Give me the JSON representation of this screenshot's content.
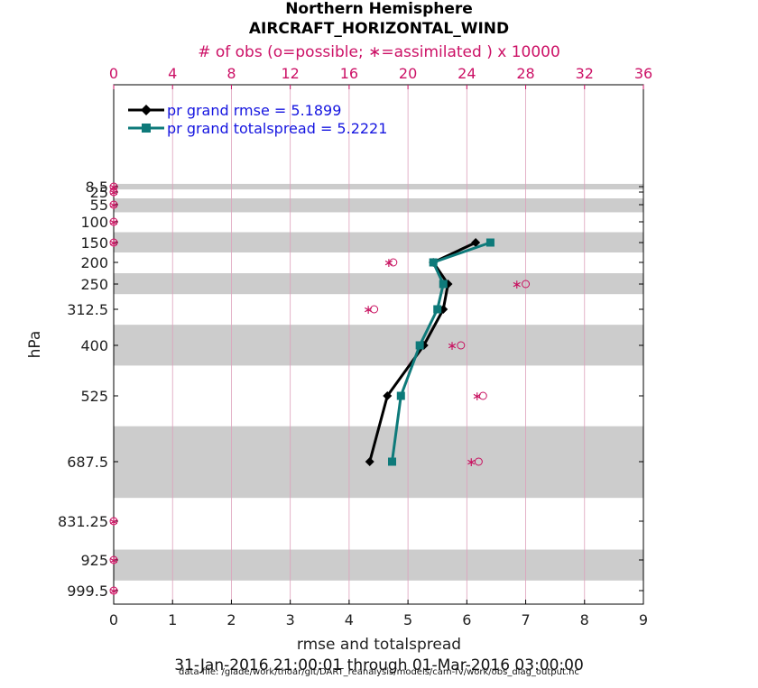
{
  "header": {
    "line1": "Northern Hemisphere",
    "line2": "AIRCRAFT_HORIZONTAL_WIND",
    "top_axis_label": "# of obs (o=possible; ∗=assimilated ) x 10000"
  },
  "footer": {
    "date_range": "31-Jan-2016 21:00:01 through 01-Mar-2016 03:00:00",
    "data_file": "data file: /glade/work/thoar/git/DART_reanalysis/models/cam-fv/work/obs_diag_output.nc"
  },
  "colors": {
    "rmse": "#000000",
    "spread": "#0e7a7a",
    "obs": "#c8105f",
    "legend_text": "#1515e0",
    "band": "#cccccc",
    "top_axis": "#cc1166"
  },
  "chart_data": {
    "type": "line",
    "xlabel": "rmse and totalspread",
    "ylabel": "hPa",
    "xlim": [
      0,
      9
    ],
    "x_ticks": [
      "0",
      "1",
      "2",
      "3",
      "4",
      "5",
      "6",
      "7",
      "8",
      "9"
    ],
    "top_xlim": [
      0,
      36
    ],
    "top_ticks": [
      "0",
      "4",
      "8",
      "12",
      "16",
      "20",
      "24",
      "28",
      "32",
      "36"
    ],
    "y_ticks": [
      "8.5",
      "25",
      "55",
      "100",
      "150",
      "200",
      "250",
      "312.5",
      "400",
      "525",
      "687.5",
      "831.25",
      "925",
      "999.5"
    ],
    "levels": [
      8.5,
      25,
      55,
      100,
      150,
      200,
      250,
      312.5,
      400,
      525,
      687.5,
      831.25,
      925,
      999.5
    ],
    "y_inverted": true,
    "bands_hpa": [
      [
        0,
        17
      ],
      [
        40,
        75
      ],
      [
        125,
        175
      ],
      [
        225,
        275
      ],
      [
        350,
        450
      ],
      [
        600,
        775
      ],
      [
        900,
        975
      ]
    ],
    "series": [
      {
        "name": "pr grand rmse = 5.1899",
        "marker": "diamond",
        "levels": [
          150,
          200,
          250,
          312.5,
          400,
          525,
          687.5
        ],
        "values": [
          6.15,
          5.43,
          5.68,
          5.6,
          5.27,
          4.65,
          4.35
        ]
      },
      {
        "name": "pr grand totalspread = 5.2221",
        "marker": "square",
        "levels": [
          150,
          200,
          250,
          312.5,
          400,
          525,
          687.5
        ],
        "values": [
          6.4,
          5.43,
          5.6,
          5.5,
          5.2,
          4.88,
          4.73
        ]
      }
    ],
    "obs_possible_x10000": [
      {
        "level": 8.5,
        "value": 0
      },
      {
        "level": 25,
        "value": 0
      },
      {
        "level": 55,
        "value": 0
      },
      {
        "level": 100,
        "value": 0
      },
      {
        "level": 150,
        "value": 0
      },
      {
        "level": 200,
        "value": 19
      },
      {
        "level": 250,
        "value": 28
      },
      {
        "level": 312.5,
        "value": 17.7
      },
      {
        "level": 400,
        "value": 23.6
      },
      {
        "level": 525,
        "value": 25.1
      },
      {
        "level": 687.5,
        "value": 24.8
      },
      {
        "level": 831.25,
        "value": 0
      },
      {
        "level": 925,
        "value": 0
      },
      {
        "level": 999.5,
        "value": 0
      }
    ],
    "obs_assimilated_x10000": [
      {
        "level": 8.5,
        "value": 0
      },
      {
        "level": 25,
        "value": 0
      },
      {
        "level": 55,
        "value": 0
      },
      {
        "level": 100,
        "value": 0
      },
      {
        "level": 150,
        "value": 0
      },
      {
        "level": 200,
        "value": 18.7
      },
      {
        "level": 250,
        "value": 27.4
      },
      {
        "level": 312.5,
        "value": 17.3
      },
      {
        "level": 400,
        "value": 23
      },
      {
        "level": 525,
        "value": 24.7
      },
      {
        "level": 687.5,
        "value": 24.3
      },
      {
        "level": 831.25,
        "value": 0
      },
      {
        "level": 925,
        "value": 0
      },
      {
        "level": 999.5,
        "value": 0
      }
    ]
  }
}
